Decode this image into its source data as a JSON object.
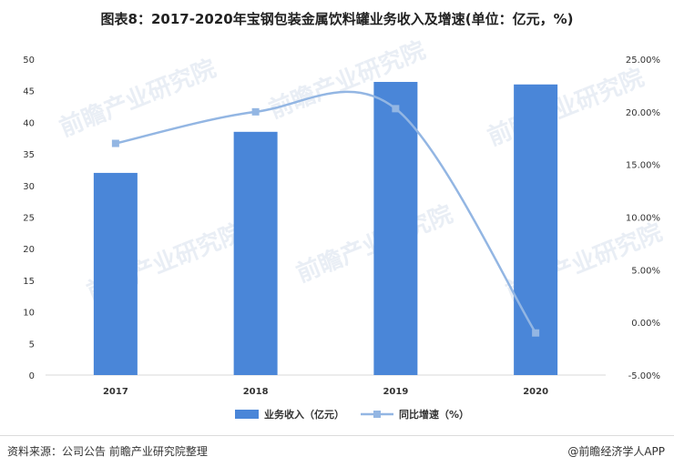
{
  "title": "图表8：2017-2020年宝钢包装金属饮料罐业务收入及增速(单位：亿元，%)",
  "footer": {
    "source": "资料来源：公司公告 前瞻产业研究院整理",
    "brand": "@前瞻经济学人APP"
  },
  "watermark": "前瞻产业研究院",
  "chart_data": {
    "type": "bar",
    "categories": [
      "2017",
      "2018",
      "2019",
      "2020"
    ],
    "series": [
      {
        "name": "业务收入（亿元）",
        "type": "bar",
        "axis": "left",
        "color": "#4a86d8",
        "values": [
          32.0,
          38.5,
          46.4,
          46.0
        ]
      },
      {
        "name": "同比增速（%）",
        "type": "line",
        "axis": "right",
        "color": "#93b6e3",
        "values": [
          17.0,
          20.0,
          20.3,
          -1.0
        ]
      }
    ],
    "left_axis": {
      "min": 0,
      "max": 50,
      "step": 5,
      "ticks": [
        "0",
        "5",
        "10",
        "15",
        "20",
        "25",
        "30",
        "35",
        "40",
        "45",
        "50"
      ]
    },
    "right_axis": {
      "min": -5,
      "max": 25,
      "step": 5,
      "ticks": [
        "-5.00%",
        "0.00%",
        "5.00%",
        "10.00%",
        "15.00%",
        "20.00%",
        "25.00%"
      ]
    },
    "grid": false,
    "legend_position": "bottom"
  }
}
